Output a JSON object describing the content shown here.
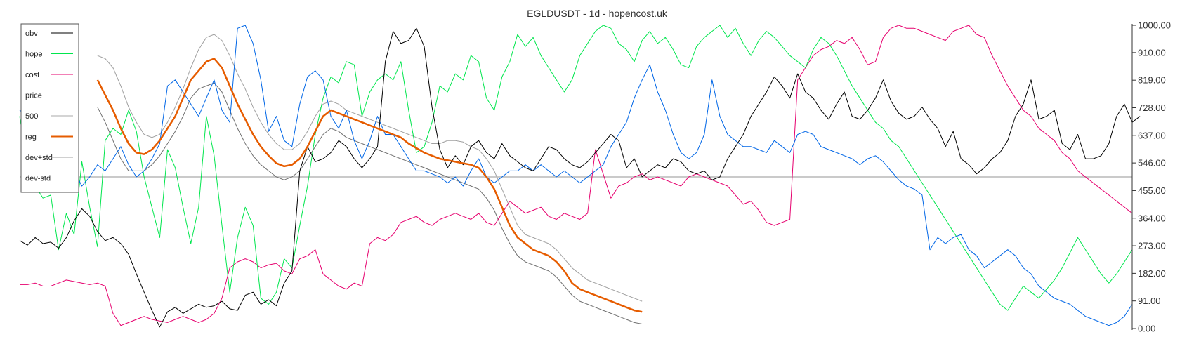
{
  "chart_data": {
    "type": "line",
    "title": "EGLDUSDT - 1d - hopencost.uk",
    "xlabel": "",
    "ylabel": "",
    "ylim": [
      0,
      1000
    ],
    "yticks": [
      "1000.00",
      "910.00",
      "819.00",
      "728.00",
      "637.00",
      "546.00",
      "455.00",
      "364.00",
      "273.00",
      "182.00",
      "91.00",
      "0.00"
    ],
    "ytick_values": [
      1000,
      910,
      819,
      728,
      637,
      546,
      455,
      364,
      273,
      182,
      91,
      0
    ],
    "reference_line": 500,
    "legend_position": "top-left",
    "grid": false,
    "x_count": 144,
    "series": [
      {
        "name": "obv",
        "color": "#000000",
        "width": 1,
        "x_start": 0,
        "values": [
          290,
          275,
          300,
          280,
          285,
          265,
          300,
          355,
          395,
          370,
          320,
          290,
          300,
          280,
          245,
          180,
          120,
          60,
          5,
          55,
          70,
          50,
          65,
          80,
          70,
          75,
          90,
          65,
          60,
          110,
          120,
          80,
          95,
          75,
          150,
          190,
          520,
          600,
          550,
          560,
          580,
          620,
          600,
          560,
          530,
          560,
          600,
          880,
          980,
          940,
          950,
          990,
          930,
          730,
          590,
          530,
          570,
          540,
          600,
          620,
          580,
          560,
          610,
          570,
          550,
          530,
          520,
          560,
          600,
          590,
          560,
          540,
          530,
          550,
          580,
          610,
          640,
          620,
          530,
          560,
          500,
          520,
          540,
          530,
          560,
          550,
          520,
          510,
          520,
          490,
          500,
          560,
          600,
          640,
          700,
          740,
          780,
          830,
          800,
          760,
          840,
          780,
          760,
          720,
          690,
          740,
          780,
          700,
          690,
          720,
          760,
          820,
          750,
          710,
          690,
          700,
          730,
          690,
          660,
          600,
          650,
          560,
          540,
          510,
          530,
          560,
          580,
          620,
          700,
          740,
          820,
          690,
          700,
          720,
          610,
          590,
          640,
          560,
          560,
          570,
          610,
          700,
          740,
          680,
          700
        ]
      },
      {
        "name": "hope",
        "color": "#00e64d",
        "width": 1,
        "x_start": 0,
        "values": [
          700,
          540,
          470,
          430,
          440,
          260,
          380,
          310,
          550,
          400,
          270,
          620,
          660,
          640,
          720,
          650,
          500,
          400,
          300,
          590,
          530,
          400,
          280,
          400,
          700,
          570,
          340,
          120,
          300,
          400,
          340,
          100,
          80,
          120,
          230,
          200,
          340,
          470,
          640,
          760,
          830,
          810,
          880,
          870,
          700,
          780,
          820,
          840,
          820,
          880,
          720,
          580,
          600,
          680,
          800,
          780,
          840,
          820,
          900,
          880,
          760,
          720,
          830,
          880,
          970,
          930,
          960,
          900,
          860,
          820,
          780,
          820,
          900,
          940,
          980,
          1000,
          990,
          940,
          920,
          880,
          950,
          980,
          940,
          960,
          920,
          870,
          860,
          930,
          960,
          980,
          1000,
          960,
          990,
          940,
          900,
          950,
          980,
          960,
          930,
          900,
          880,
          860,
          920,
          960,
          940,
          900,
          850,
          800,
          760,
          720,
          680,
          660,
          620,
          600,
          560,
          520,
          480,
          440,
          400,
          360,
          320,
          280,
          240,
          200,
          160,
          120,
          80,
          60,
          100,
          140,
          120,
          100,
          130,
          160,
          200,
          250,
          300,
          260,
          220,
          180,
          150,
          180,
          220,
          260
        ]
      },
      {
        "name": "cost",
        "color": "#e6006e",
        "width": 1,
        "x_start": 0,
        "values": [
          145,
          145,
          150,
          140,
          140,
          150,
          160,
          155,
          150,
          145,
          150,
          140,
          50,
          10,
          20,
          30,
          40,
          30,
          25,
          20,
          30,
          40,
          30,
          20,
          30,
          50,
          100,
          200,
          220,
          230,
          220,
          200,
          210,
          215,
          190,
          180,
          230,
          240,
          260,
          180,
          160,
          140,
          130,
          150,
          140,
          280,
          300,
          290,
          310,
          350,
          360,
          370,
          350,
          340,
          360,
          370,
          380,
          370,
          360,
          380,
          350,
          340,
          380,
          420,
          400,
          380,
          390,
          400,
          370,
          360,
          380,
          370,
          360,
          380,
          590,
          510,
          430,
          470,
          480,
          500,
          510,
          490,
          500,
          490,
          480,
          470,
          500,
          510,
          500,
          490,
          480,
          470,
          440,
          410,
          420,
          390,
          350,
          340,
          350,
          360,
          820,
          860,
          900,
          920,
          930,
          950,
          940,
          960,
          920,
          870,
          880,
          960,
          990,
          1000,
          990,
          990,
          980,
          970,
          960,
          950,
          980,
          990,
          1000,
          970,
          960,
          900,
          850,
          800,
          760,
          720,
          700,
          660,
          640,
          620,
          580,
          560,
          520,
          500,
          480,
          460,
          440,
          420,
          400,
          380
        ]
      },
      {
        "name": "price",
        "color": "#0066e6",
        "width": 1,
        "x_start": 0,
        "values": [
          720,
          700,
          740,
          640,
          600,
          570,
          540,
          520,
          470,
          500,
          540,
          520,
          560,
          600,
          540,
          500,
          520,
          560,
          610,
          800,
          820,
          780,
          740,
          700,
          760,
          820,
          720,
          680,
          990,
          1000,
          940,
          820,
          650,
          700,
          620,
          600,
          740,
          830,
          850,
          820,
          700,
          660,
          720,
          620,
          560,
          620,
          700,
          640,
          640,
          600,
          560,
          520,
          520,
          510,
          500,
          480,
          500,
          470,
          520,
          560,
          500,
          480,
          500,
          520,
          520,
          540,
          520,
          540,
          520,
          500,
          520,
          500,
          480,
          500,
          520,
          540,
          600,
          640,
          680,
          760,
          820,
          870,
          780,
          720,
          640,
          580,
          560,
          580,
          640,
          820,
          700,
          640,
          620,
          600,
          600,
          590,
          580,
          620,
          600,
          580,
          640,
          650,
          640,
          600,
          590,
          580,
          570,
          560,
          540,
          560,
          570,
          550,
          520,
          490,
          470,
          460,
          440,
          260,
          300,
          280,
          300,
          310,
          260,
          240,
          200,
          220,
          240,
          260,
          240,
          200,
          180,
          140,
          120,
          100,
          90,
          80,
          60,
          40,
          30,
          20,
          10,
          20,
          40,
          80
        ]
      },
      {
        "name": "500",
        "color": "#aaaaaa",
        "width": 1,
        "x_start": 0,
        "values": []
      },
      {
        "name": "reg",
        "color": "#e65c00",
        "width": 2.5,
        "x_start": 10,
        "values": [
          820,
          770,
          720,
          660,
          610,
          580,
          575,
          590,
          620,
          660,
          700,
          760,
          820,
          850,
          880,
          890,
          860,
          800,
          740,
          690,
          640,
          600,
          570,
          545,
          535,
          540,
          560,
          600,
          650,
          700,
          720,
          710,
          700,
          690,
          680,
          670,
          660,
          650,
          640,
          630,
          610,
          595,
          580,
          570,
          560,
          555,
          550,
          545,
          540,
          530,
          500,
          460,
          400,
          340,
          300,
          280,
          260,
          250,
          240,
          220,
          190,
          150,
          130,
          120,
          110,
          100,
          90,
          80,
          70,
          60,
          55
        ]
      },
      {
        "name": "dev+std",
        "color": "#a0a0a0",
        "width": 1,
        "x_start": 10,
        "values": [
          900,
          890,
          860,
          800,
          730,
          680,
          640,
          630,
          640,
          680,
          730,
          790,
          860,
          920,
          960,
          970,
          950,
          900,
          840,
          790,
          730,
          680,
          640,
          610,
          590,
          590,
          610,
          650,
          700,
          740,
          750,
          740,
          720,
          710,
          700,
          690,
          680,
          670,
          660,
          650,
          640,
          630,
          620,
          610,
          610,
          620,
          620,
          615,
          600,
          590,
          560,
          520,
          460,
          400,
          340,
          310,
          300,
          290,
          280,
          260,
          230,
          200,
          180,
          160,
          150,
          140,
          130,
          120,
          110,
          100,
          90
        ]
      },
      {
        "name": "dev-std",
        "color": "#707070",
        "width": 1,
        "x_start": 10,
        "values": [
          730,
          680,
          620,
          560,
          520,
          520,
          520,
          540,
          570,
          610,
          650,
          700,
          760,
          790,
          800,
          810,
          780,
          720,
          660,
          610,
          570,
          540,
          520,
          500,
          490,
          500,
          520,
          560,
          600,
          640,
          660,
          650,
          630,
          620,
          610,
          600,
          590,
          580,
          570,
          560,
          550,
          540,
          530,
          520,
          510,
          500,
          490,
          480,
          470,
          460,
          430,
          390,
          330,
          280,
          240,
          220,
          210,
          200,
          190,
          170,
          140,
          110,
          90,
          80,
          70,
          60,
          50,
          40,
          30,
          20,
          15
        ]
      }
    ]
  }
}
